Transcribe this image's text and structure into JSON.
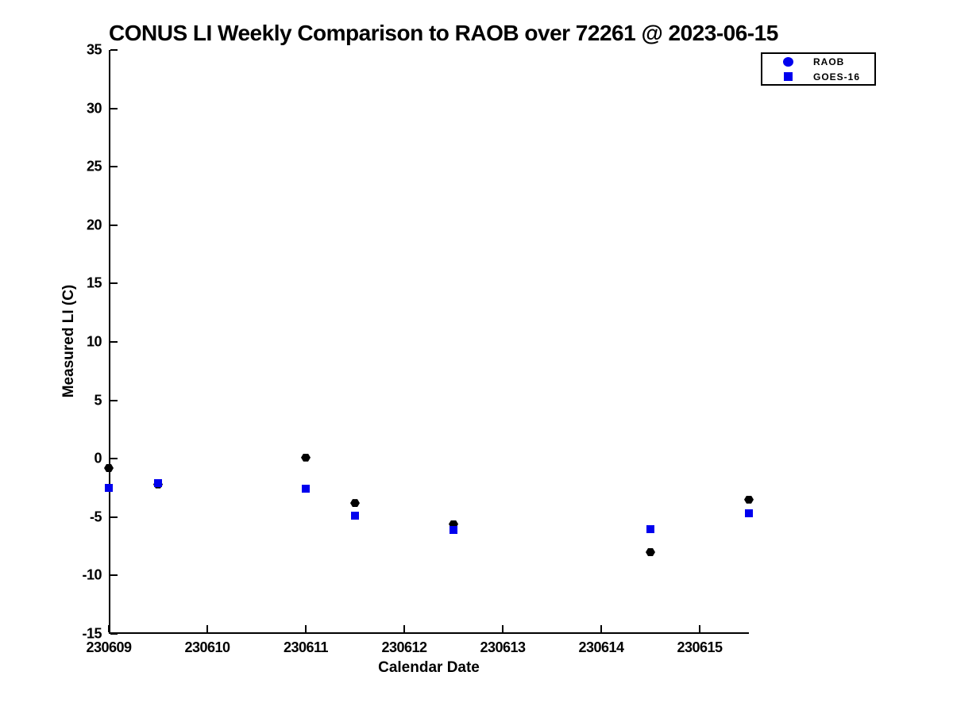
{
  "figure": {
    "background": "#ffffff",
    "axis_color": "#000000"
  },
  "chart_data": {
    "type": "scatter",
    "title": "CONUS LI Weekly Comparison to RAOB over 72261 @ 2023-06-15",
    "xlabel": "Calendar Date",
    "ylabel": "Measured LI (C)",
    "xlim": [
      230609,
      230615.5
    ],
    "ylim": [
      -15,
      35
    ],
    "x_ticks": [
      "230609",
      "230610",
      "230611",
      "230612",
      "230613",
      "230614",
      "230615"
    ],
    "y_ticks": [
      35,
      30,
      25,
      20,
      15,
      10,
      5,
      0,
      -5,
      -10,
      -15
    ],
    "grid": false,
    "legend": {
      "position": "top-right-outside",
      "entries": [
        {
          "label": "RAOB",
          "marker": "circle",
          "color": "#0000ee"
        },
        {
          "label": "GOES-16",
          "marker": "square",
          "color": "#0000ee"
        }
      ]
    },
    "series": [
      {
        "name": "RAOB",
        "marker": "hexagon",
        "color": "#000000",
        "points": [
          {
            "x": 230609.0,
            "y": -0.8
          },
          {
            "x": 230609.5,
            "y": -2.2
          },
          {
            "x": 230611.0,
            "y": 0.1
          },
          {
            "x": 230611.5,
            "y": -3.8
          },
          {
            "x": 230612.5,
            "y": -5.6
          },
          {
            "x": 230614.5,
            "y": -8.0
          },
          {
            "x": 230615.5,
            "y": -3.5
          }
        ]
      },
      {
        "name": "GOES-16",
        "marker": "square",
        "color": "#0000ee",
        "points": [
          {
            "x": 230609.0,
            "y": -2.5
          },
          {
            "x": 230609.5,
            "y": -2.1
          },
          {
            "x": 230611.0,
            "y": -2.6
          },
          {
            "x": 230611.5,
            "y": -4.9
          },
          {
            "x": 230612.5,
            "y": -6.1
          },
          {
            "x": 230614.5,
            "y": -6.0
          },
          {
            "x": 230615.5,
            "y": -4.7
          }
        ]
      }
    ]
  }
}
